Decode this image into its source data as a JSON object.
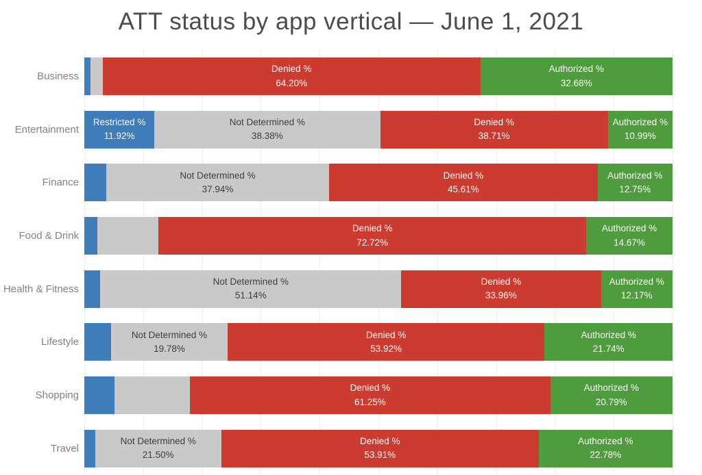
{
  "title": "ATT status by app vertical — June 1, 2021",
  "colors": {
    "restricted": "#3e7cba",
    "not_determined": "#c9c9c9",
    "denied": "#cc3b30",
    "authorized": "#4f9c3e",
    "gridline": "#ededed",
    "title_text": "#4c4c4c",
    "category_text": "#828282",
    "label_on_color": "#fdfbfa",
    "label_on_gray": "#3d3d3d"
  },
  "chart_data": {
    "type": "bar",
    "orientation": "horizontal-stacked",
    "title": "ATT status by app vertical — June 1, 2021",
    "xlabel": "",
    "ylabel": "",
    "xlim": [
      0,
      100
    ],
    "grid": "vertical gridlines every 10%",
    "legend": "none (segments labeled inline)",
    "categories": [
      "Business",
      "Entertainment",
      "Finance",
      "Food & Drink",
      "Health & Fitness",
      "Lifestyle",
      "Shopping",
      "Travel"
    ],
    "series": [
      {
        "name": "Restricted %",
        "color": "#3e7cba",
        "text_color": "#fdfbfa",
        "values": [
          1.0,
          11.92,
          3.7,
          2.21,
          2.73,
          4.56,
          5.15,
          1.81
        ]
      },
      {
        "name": "Not Determined %",
        "color": "#c9c9c9",
        "text_color": "#3d3d3d",
        "values": [
          2.12,
          38.38,
          37.94,
          10.4,
          51.14,
          19.78,
          12.81,
          21.5
        ]
      },
      {
        "name": "Denied %",
        "color": "#cc3b30",
        "text_color": "#fdfbfa",
        "values": [
          64.2,
          38.71,
          45.61,
          72.72,
          33.96,
          53.92,
          61.25,
          53.91
        ]
      },
      {
        "name": "Authorized %",
        "color": "#4f9c3e",
        "text_color": "#fdfbfa",
        "values": [
          32.68,
          10.99,
          12.75,
          14.67,
          12.17,
          21.74,
          20.79,
          22.78
        ]
      }
    ],
    "labels_shown": [
      [
        false,
        false,
        true,
        true
      ],
      [
        true,
        true,
        true,
        true
      ],
      [
        false,
        true,
        true,
        true
      ],
      [
        false,
        false,
        true,
        true
      ],
      [
        false,
        true,
        true,
        true
      ],
      [
        false,
        true,
        true,
        true
      ],
      [
        false,
        false,
        true,
        true
      ],
      [
        false,
        true,
        true,
        true
      ]
    ],
    "value_suffix": "%",
    "value_decimals": 2
  }
}
